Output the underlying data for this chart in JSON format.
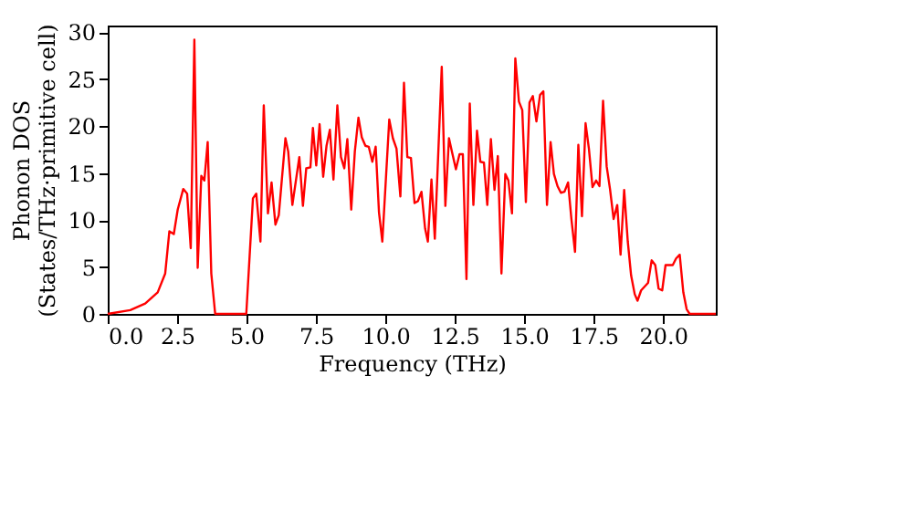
{
  "chart_data": {
    "type": "line",
    "xlabel": "Frequency (THz)",
    "ylabel": "Phonon DOS\n(States/THz·primitive cell)",
    "xlim": [
      0,
      21.9
    ],
    "ylim": [
      0,
      30.7
    ],
    "xticks": [
      {
        "value": 0,
        "label": "0.0"
      },
      {
        "value": 2.5,
        "label": "2.5"
      },
      {
        "value": 5,
        "label": "5.0"
      },
      {
        "value": 7.5,
        "label": "7.5"
      },
      {
        "value": 10,
        "label": "10.0"
      },
      {
        "value": 12.5,
        "label": "12.5"
      },
      {
        "value": 15,
        "label": "15.0"
      },
      {
        "value": 17.5,
        "label": "17.5"
      },
      {
        "value": 20,
        "label": "20.0"
      }
    ],
    "yticks": [
      0,
      5,
      10,
      15,
      20,
      25,
      30
    ],
    "grid": false,
    "line_style": "solid",
    "marker": "none",
    "series": [
      {
        "color": "#ff0000",
        "x": [
          0,
          0.81,
          1.35,
          1.8,
          2.07,
          2.22,
          2.38,
          2.52,
          2.72,
          2.86,
          2.99,
          3.12,
          3.24,
          3.37,
          3.48,
          3.6,
          3.73,
          3.87,
          4.99,
          5.23,
          5.35,
          5.5,
          5.62,
          5.77,
          5.9,
          6.04,
          6.16,
          6.4,
          6.5,
          6.65,
          6.9,
          7.03,
          7.15,
          7.3,
          7.39,
          7.51,
          7.63,
          7.76,
          7.88,
          8.0,
          8.13,
          8.27,
          8.4,
          8.52,
          8.63,
          8.77,
          8.9,
          9.03,
          9.15,
          9.28,
          9.4,
          9.53,
          9.65,
          9.77,
          9.89,
          10.14,
          10.27,
          10.4,
          10.54,
          10.67,
          10.79,
          10.92,
          11.05,
          11.17,
          11.3,
          11.43,
          11.53,
          11.66,
          11.78,
          12.03,
          12.16,
          12.29,
          12.41,
          12.54,
          12.67,
          12.79,
          12.92,
          13.04,
          13.17,
          13.3,
          13.42,
          13.55,
          13.67,
          13.8,
          13.93,
          14.05,
          14.18,
          14.32,
          14.43,
          14.56,
          14.68,
          14.81,
          14.93,
          15.06,
          15.19,
          15.31,
          15.44,
          15.57,
          15.69,
          15.82,
          15.95,
          16.07,
          16.2,
          16.32,
          16.45,
          16.58,
          16.7,
          16.83,
          16.95,
          17.08,
          17.21,
          17.33,
          17.46,
          17.59,
          17.71,
          17.84,
          17.97,
          18.09,
          18.22,
          18.35,
          18.47,
          18.6,
          18.73,
          18.85,
          18.98,
          19.08,
          19.21,
          19.46,
          19.59,
          19.72,
          19.84,
          19.97,
          20.09,
          20.35,
          20.47,
          20.6,
          20.73,
          20.85,
          20.96,
          21.9
        ],
        "values": [
          0,
          0.4,
          1.1,
          2.3,
          4.3,
          8.8,
          8.5,
          11.1,
          13.3,
          12.8,
          7.0,
          29.2,
          4.9,
          14.7,
          14.2,
          18.3,
          4.3,
          0,
          0,
          12.3,
          12.8,
          7.7,
          22.2,
          10.7,
          14,
          9.5,
          10.5,
          18.7,
          17.3,
          11.6,
          16.7,
          11.5,
          15.5,
          15.6,
          19.8,
          15.8,
          20.2,
          14.6,
          17.9,
          19.6,
          14.3,
          22.2,
          16.7,
          15.5,
          18.6,
          11.1,
          17.3,
          20.9,
          18.8,
          17.9,
          17.8,
          16.2,
          17.8,
          10.8,
          7.7,
          20.7,
          18.7,
          17.6,
          12.5,
          24.6,
          16.7,
          16.6,
          11.8,
          12.0,
          13,
          9.1,
          7.7,
          14.3,
          8.0,
          26.3,
          11.5,
          18.7,
          17.1,
          15.4,
          17,
          17,
          3.7,
          22.4,
          11.6,
          19.5,
          16.2,
          16.1,
          11.6,
          18.6,
          13.2,
          16.8,
          4.3,
          14.9,
          14.2,
          10.7,
          27.2,
          22.6,
          21.7,
          11.9,
          22.5,
          23.2,
          20.5,
          23.3,
          23.7,
          11.6,
          18.3,
          14.9,
          13.6,
          12.9,
          13,
          14,
          10.1,
          6.6,
          18,
          10.4,
          20.3,
          17.6,
          13.5,
          14.2,
          13.6,
          22.7,
          15.7,
          13.3,
          10.1,
          11.6,
          6.3,
          13.2,
          7.7,
          4.1,
          2.1,
          1.4,
          2.5,
          3.3,
          5.7,
          5.2,
          2.7,
          2.5,
          5.2,
          5.2,
          5.9,
          6.3,
          2.3,
          0.5,
          0,
          0
        ]
      }
    ]
  }
}
